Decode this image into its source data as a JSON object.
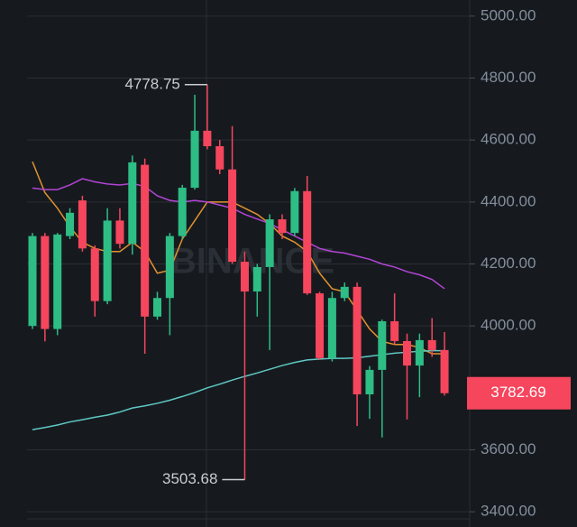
{
  "chart_data": {
    "type": "candlestick",
    "watermark": "BINANCE",
    "open": [
      4000,
      4290,
      3990,
      4290,
      4405,
      4250,
      4080,
      4340,
      4265,
      4520,
      4030,
      4090,
      4290,
      4446,
      4630,
      4580,
      4505,
      4207,
      4111,
      4190,
      4344,
      4300,
      4435,
      4105,
      3896,
      4090,
      4126,
      3779,
      3858,
      4015,
      3951,
      3872,
      3954,
      3922
    ],
    "high": [
      4300,
      4300,
      4300,
      4380,
      4420,
      4260,
      4380,
      4380,
      4550,
      4540,
      4110,
      4300,
      4455,
      4746,
      4778.75,
      4600,
      4645,
      4240,
      4200,
      4360,
      4360,
      4445,
      4484,
      4110,
      4110,
      4140,
      4140,
      3870,
      4020,
      4105,
      3975,
      3975,
      4025,
      3980
    ],
    "low": [
      3990,
      3950,
      3970,
      4280,
      4240,
      4030,
      4070,
      4250,
      4230,
      3910,
      4020,
      3970,
      4280,
      4440,
      4570,
      4490,
      4200,
      3503.68,
      4030,
      3922,
      4280,
      4290,
      4100,
      3890,
      3885,
      4080,
      3677,
      3700,
      3640,
      3940,
      3698,
      3770,
      3900,
      3775
    ],
    "close": [
      4290,
      3990,
      4295,
      4365,
      4250,
      4080,
      4340,
      4265,
      4528,
      4030,
      4090,
      4290,
      4446,
      4630,
      4580,
      4505,
      4207,
      4111,
      4190,
      4344,
      4300,
      4435,
      4105,
      3896,
      4090,
      4126,
      3779,
      3858,
      4015,
      3951,
      3872,
      3954,
      3922,
      3782.69
    ],
    "up_color": "#2ebd85",
    "down_color": "#f6465d",
    "series": [
      {
        "color": "#e0922f",
        "values": [
          4530,
          4430,
          4380,
          4320,
          4270,
          4250,
          4240,
          4240,
          4270,
          4240,
          4170,
          4180,
          4280,
          4340,
          4400,
          4400,
          4400,
          4380,
          4360,
          4330,
          4290,
          4270,
          4240,
          4170,
          4120,
          4110,
          4050,
          3990,
          3950,
          3940,
          3940,
          3930,
          3910,
          3910
        ]
      },
      {
        "color": "#b344d6",
        "values": [
          4445,
          4440,
          4440,
          4455,
          4475,
          4465,
          4458,
          4455,
          4460,
          4450,
          4420,
          4405,
          4400,
          4405,
          4400,
          4390,
          4380,
          4360,
          4345,
          4330,
          4310,
          4290,
          4270,
          4250,
          4240,
          4235,
          4225,
          4215,
          4200,
          4190,
          4175,
          4165,
          4150,
          4120
        ]
      },
      {
        "color": "#5fc8c4",
        "values": [
          3665,
          3672,
          3680,
          3690,
          3697,
          3705,
          3712,
          3722,
          3735,
          3742,
          3750,
          3760,
          3772,
          3785,
          3800,
          3812,
          3825,
          3837,
          3848,
          3860,
          3872,
          3882,
          3890,
          3893,
          3895,
          3895,
          3897,
          3902,
          3907,
          3912,
          3915,
          3918,
          3920,
          3920
        ]
      }
    ],
    "ylim": [
      3377,
      5052
    ],
    "yticks": [
      {
        "value": 5000,
        "label": "5000.00"
      },
      {
        "value": 4800,
        "label": "4800.00"
      },
      {
        "value": 4600,
        "label": "4600.00"
      },
      {
        "value": 4400,
        "label": "4400.00"
      },
      {
        "value": 4200,
        "label": "4200.00"
      },
      {
        "value": 4000,
        "label": "4000.00"
      },
      {
        "value": 3600,
        "label": "3600.00"
      },
      {
        "value": 3400,
        "label": "3400.00"
      }
    ],
    "grid": true
  }
}
